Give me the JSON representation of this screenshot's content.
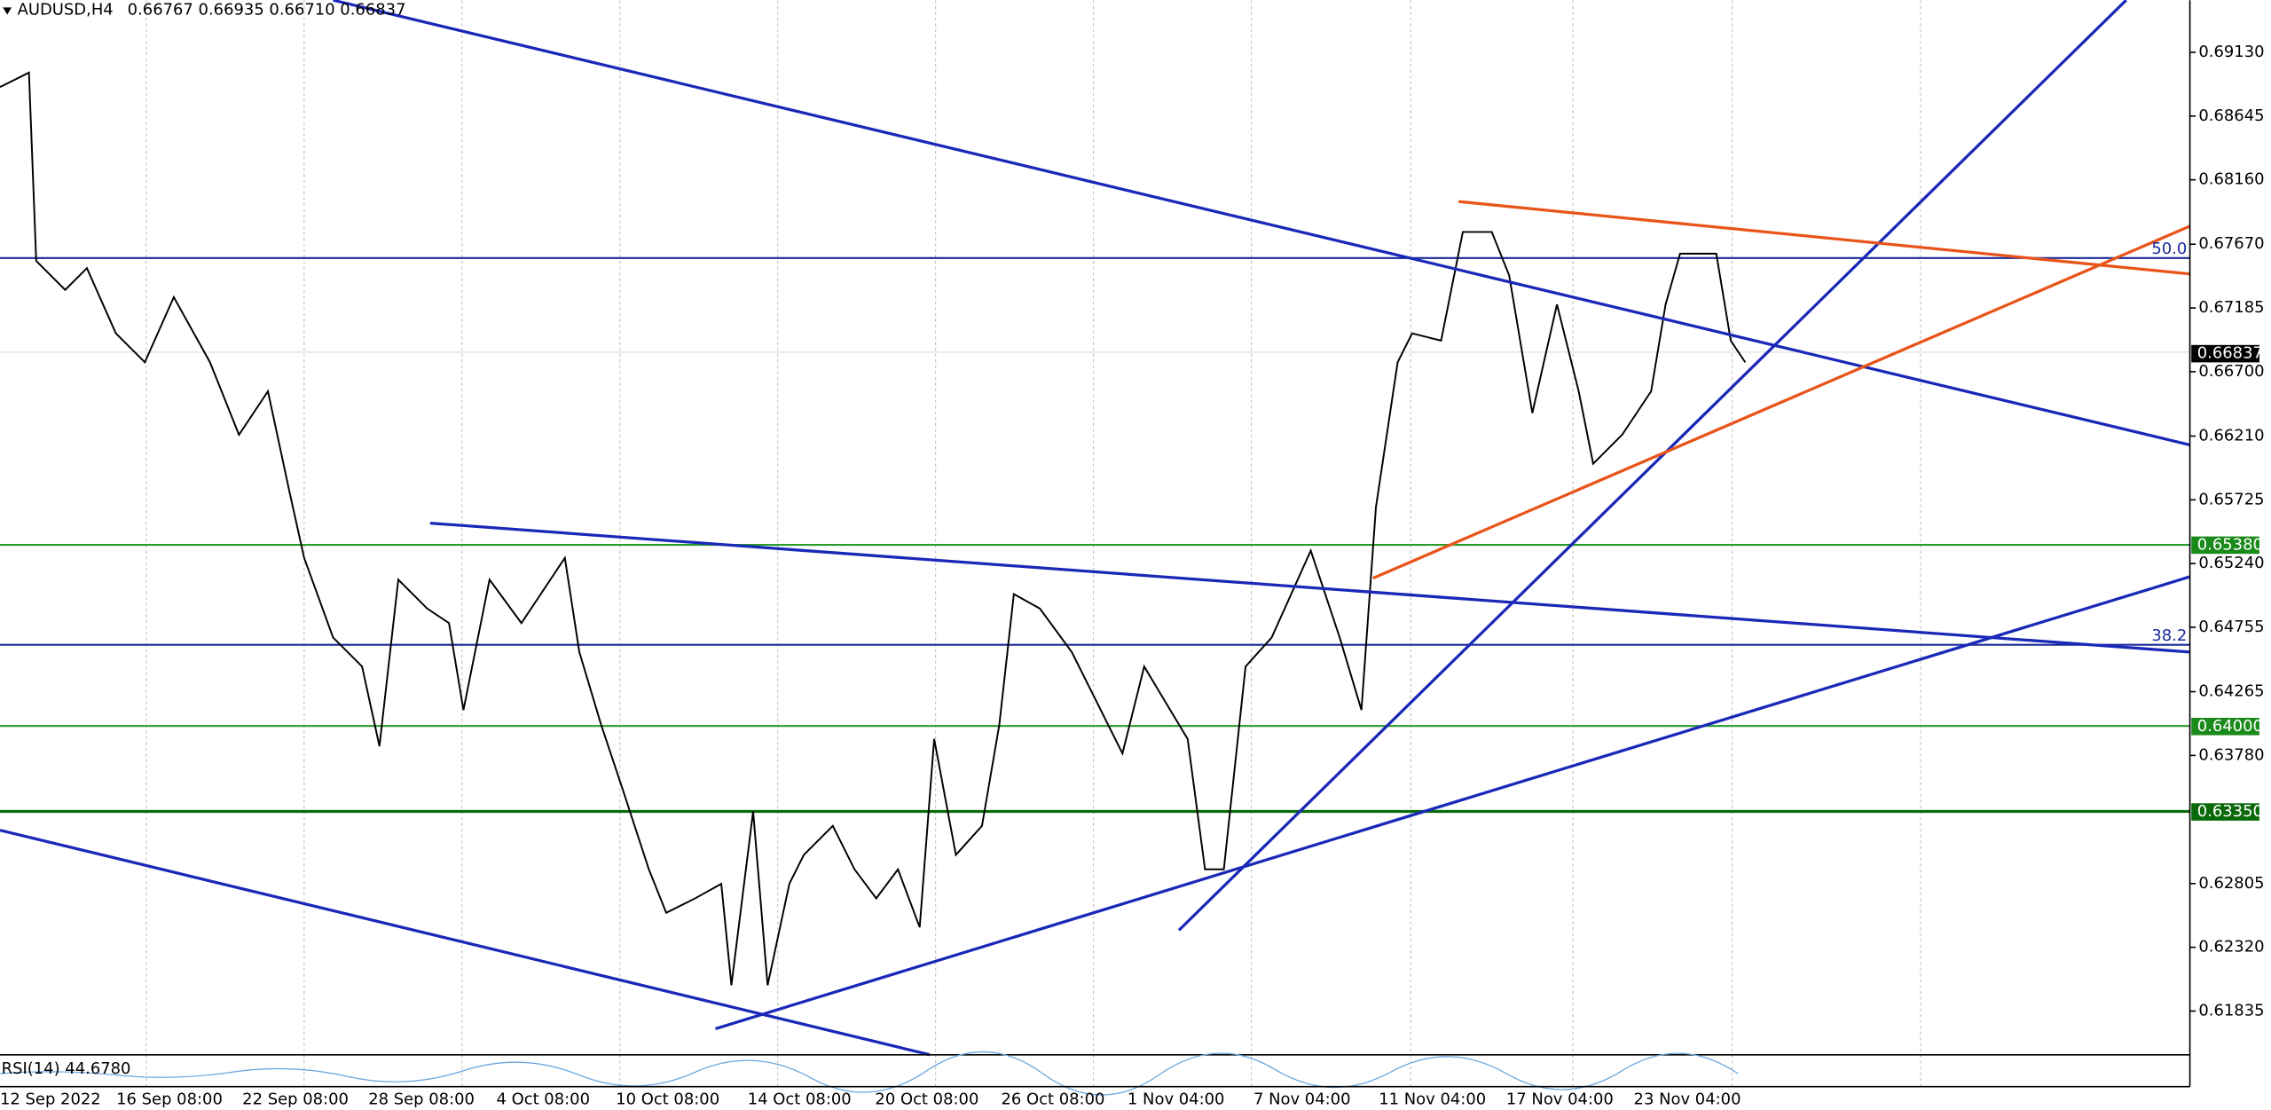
{
  "header": {
    "symbol": "AUDUSD,H4",
    "ohlc": "0.66767 0.66935 0.66710 0.66837"
  },
  "price_axis": [
    "0.69130",
    "0.68645",
    "0.68160",
    "0.67670",
    "0.67185",
    "0.66700",
    "0.66210",
    "0.65725",
    "0.65240",
    "0.64755",
    "0.64265",
    "0.63780",
    "0.62805",
    "0.62320",
    "0.61835"
  ],
  "price_boxes": [
    {
      "label": "0.66837",
      "color": "#000000"
    },
    {
      "label": "0.65380",
      "color": "#1a8a1a"
    },
    {
      "label": "0.64000",
      "color": "#1a8a1a"
    },
    {
      "label": "0.63350",
      "color": "#0a6a0a"
    }
  ],
  "time_axis": [
    "12 Sep 2022",
    "16 Sep 08:00",
    "22 Sep 08:00",
    "28 Sep 08:00",
    "4 Oct 08:00",
    "10 Oct 08:00",
    "14 Oct 08:00",
    "20 Oct 08:00",
    "26 Oct 08:00",
    "1 Nov 04:00",
    "7 Nov 04:00",
    "11 Nov 04:00",
    "17 Nov 04:00",
    "23 Nov 04:00"
  ],
  "fib_labels": [
    "50.0",
    "38.2"
  ],
  "indicator": {
    "label": "RSI(14) 44.6780"
  }
}
